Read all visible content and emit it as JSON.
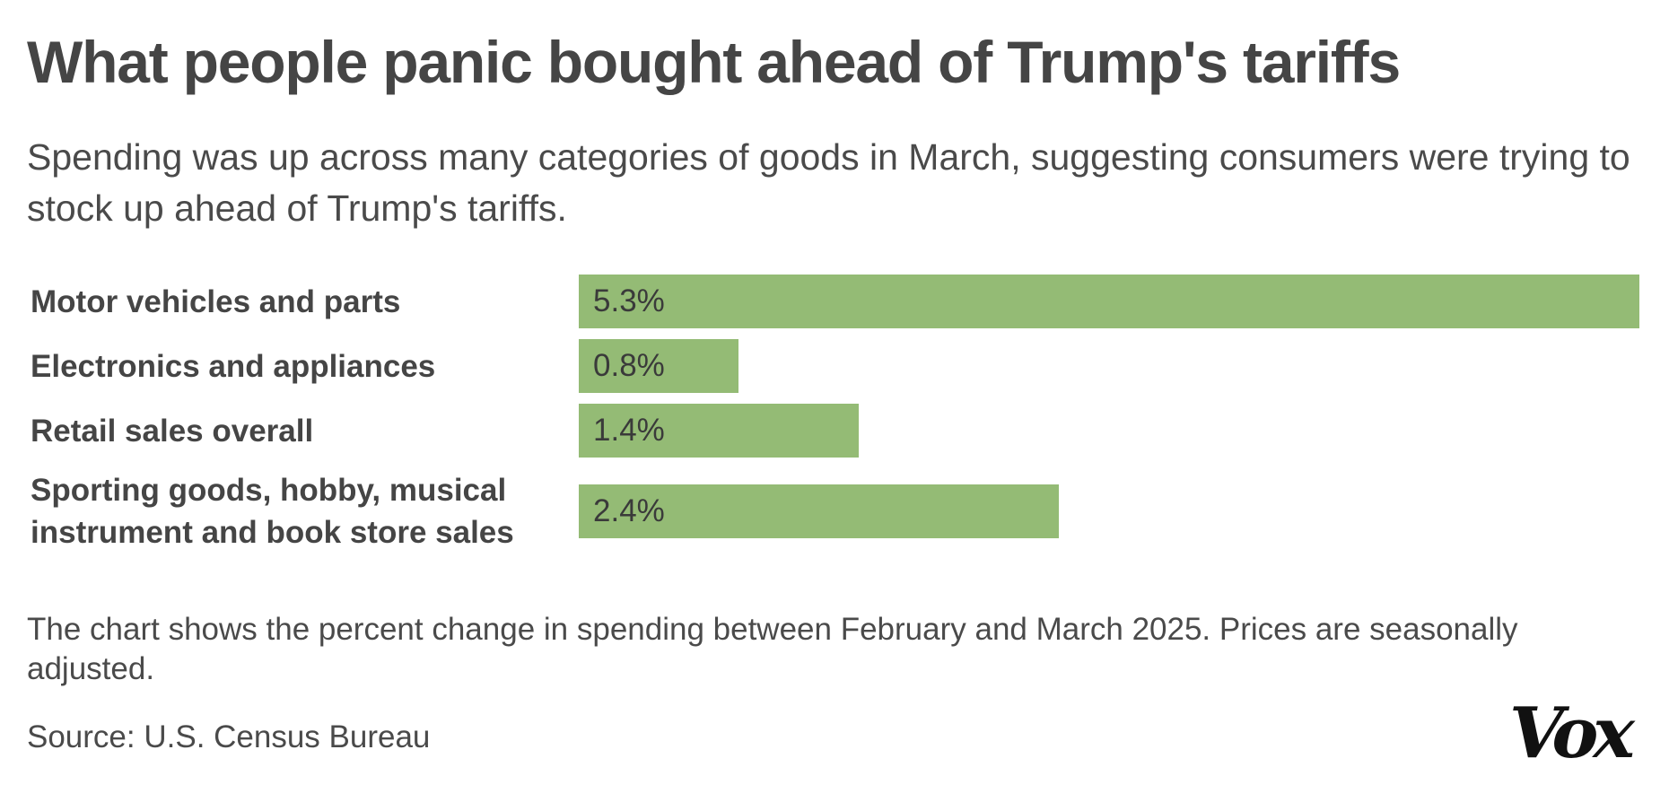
{
  "chart_data": {
    "type": "bar",
    "orientation": "horizontal",
    "title": "What people panic bought ahead of Trump's tariffs",
    "subtitle": "Spending was up across many categories of goods in March, suggesting consumers were trying to stock up ahead of Trump's tariffs.",
    "categories": [
      [
        "Motor vehicles and parts"
      ],
      [
        "Electronics and appliances"
      ],
      [
        "Retail sales overall"
      ],
      [
        "Sporting goods, hobby, musical",
        "instrument and book store sales"
      ]
    ],
    "values": [
      5.3,
      0.8,
      1.4,
      2.4
    ],
    "value_labels": [
      "5.3%",
      "0.8%",
      "1.4%",
      "2.4%"
    ],
    "unit": "%",
    "xlim": [
      0,
      5.3
    ],
    "grid": false,
    "legend": "none",
    "bar_color": "#94bb75",
    "note": "The chart shows the percent change in spending between February and March 2025. Prices are seasonally adjusted.",
    "source": "Source: U.S. Census Bureau"
  },
  "branding": {
    "logo_text": "Vox"
  }
}
